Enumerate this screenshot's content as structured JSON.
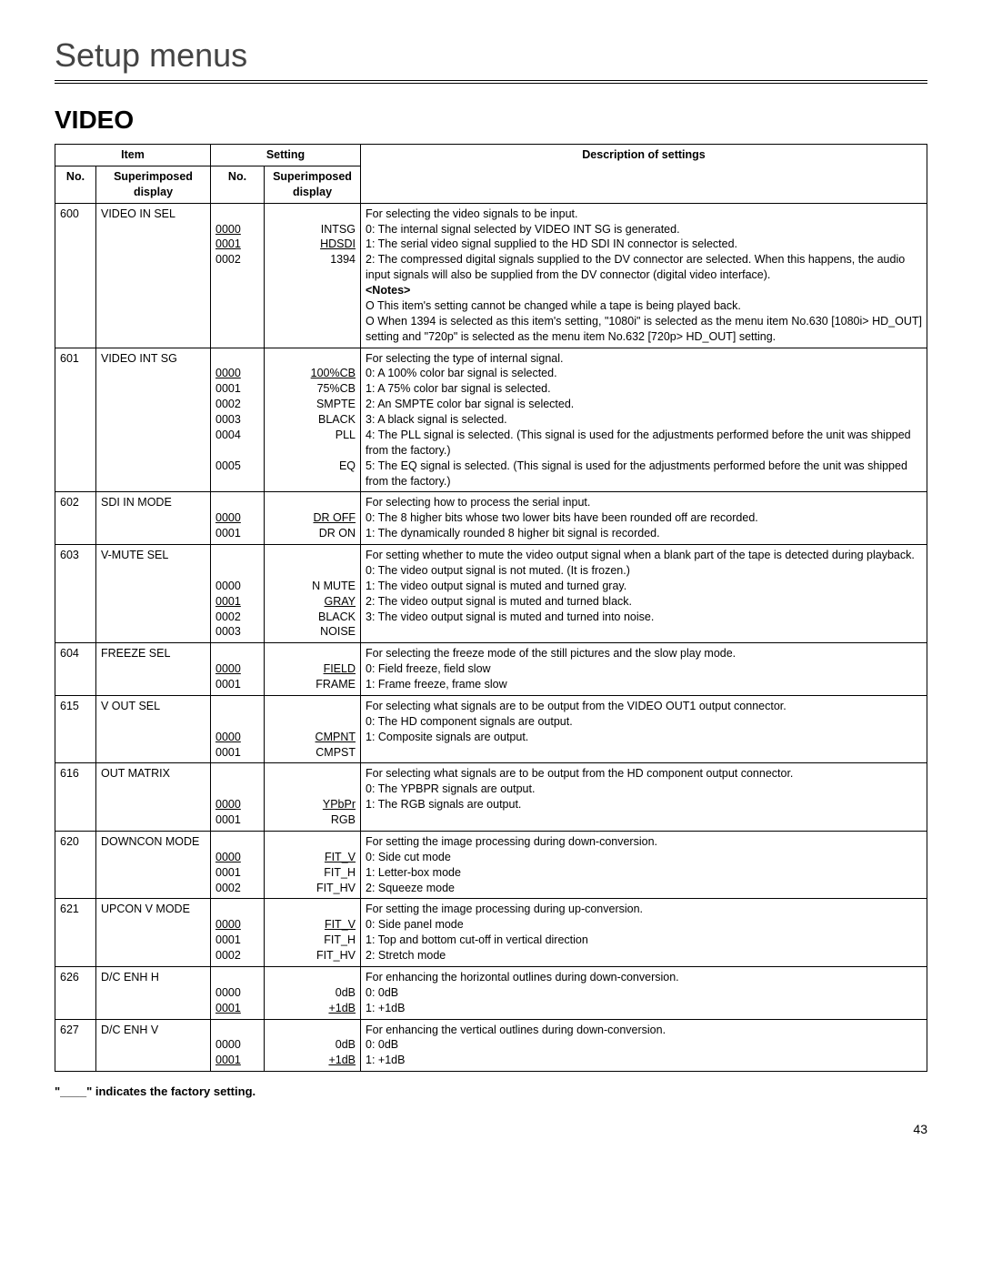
{
  "page": {
    "title": "Setup menus",
    "section": "VIDEO",
    "footnote": "\"____\" indicates the factory setting.",
    "page_number": "43"
  },
  "headers": {
    "item_group": "Item",
    "setting_group": "Setting",
    "no": "No.",
    "super_display": "Superimposed display",
    "desc": "Description of settings"
  },
  "rows": [
    {
      "no": "600",
      "item": "VIDEO IN SEL",
      "settings": [
        {
          "no": "0000",
          "label": "INTSG",
          "no_underline": true,
          "label_underline": false
        },
        {
          "no": "0001",
          "label": "HDSDI",
          "no_underline": true,
          "label_underline": true
        },
        {
          "no": "0002",
          "label": "1394"
        }
      ],
      "intro": "For selecting the video signals to be input.",
      "lines": [
        "0: The internal signal selected by VIDEO INT SG is generated.",
        "1: The serial video signal supplied to the HD SDI IN connector is selected.",
        "2: The compressed digital signals supplied to the DV connector are selected. When this happens, the audio input signals will also be supplied from the DV connector (digital video interface)."
      ],
      "notes_label": "<Notes>",
      "notes": [
        "O This item's setting cannot be changed while a tape is being played back.",
        "O When 1394 is selected as this item's setting, \"1080i\" is selected as the menu item No.630 [1080i>  HD_OUT] setting and \"720p\" is selected as the menu item No.632 [720p>  HD_OUT] setting."
      ]
    },
    {
      "no": "601",
      "item": "VIDEO INT SG",
      "settings": [
        {
          "no": "0000",
          "label": "100%CB",
          "no_underline": true,
          "label_underline": true
        },
        {
          "no": "0001",
          "label": "75%CB"
        },
        {
          "no": "0002",
          "label": "SMPTE"
        },
        {
          "no": "0003",
          "label": "BLACK"
        },
        {
          "no": "0004",
          "label": "PLL"
        },
        {
          "no": "",
          "label": ""
        },
        {
          "no": "0005",
          "label": "EQ"
        }
      ],
      "intro": "For selecting the type of internal signal.",
      "lines": [
        "0: A 100% color bar signal is selected.",
        "1: A 75% color bar signal is selected.",
        "2: An SMPTE color bar signal is selected.",
        "3: A black signal is selected.",
        "4: The PLL signal is selected.  (This signal is used for the adjustments performed before the unit was shipped from the factory.)",
        "5: The EQ signal is selected.  (This signal is used for the adjustments performed before the unit was shipped from the factory.)"
      ]
    },
    {
      "no": "602",
      "item": "SDI IN MODE",
      "settings": [
        {
          "no": "0000",
          "label": "DR OFF",
          "no_underline": true,
          "label_underline": true
        },
        {
          "no": "0001",
          "label": "DR ON"
        }
      ],
      "intro": "For selecting how to process the serial input.",
      "lines": [
        "0: The 8 higher bits whose two lower bits have been rounded off are recorded.",
        "1: The dynamically rounded 8 higher bit signal is recorded."
      ]
    },
    {
      "no": "603",
      "item": "V-MUTE SEL",
      "settings": [
        {
          "no": "",
          "label": ""
        },
        {
          "no": "0000",
          "label": "N MUTE"
        },
        {
          "no": "0001",
          "label": "GRAY",
          "no_underline": true,
          "label_underline": true
        },
        {
          "no": "0002",
          "label": "BLACK"
        },
        {
          "no": "0003",
          "label": "NOISE"
        }
      ],
      "intro": "For setting whether to mute the video output signal when a blank part of the tape is detected during playback.",
      "lines": [
        "0: The video output signal is not muted.  (It is frozen.)",
        "1: The video output signal is muted and turned gray.",
        "2: The video output signal is muted and turned black.",
        "3: The video output signal is muted and turned into noise."
      ]
    },
    {
      "no": "604",
      "item": "FREEZE SEL",
      "settings": [
        {
          "no": "0000",
          "label": "FIELD",
          "no_underline": true,
          "label_underline": true
        },
        {
          "no": "0001",
          "label": "FRAME"
        }
      ],
      "intro": "For selecting the freeze mode of the still pictures and the slow play mode.",
      "lines": [
        "0: Field freeze, field slow",
        "1: Frame freeze, frame slow"
      ]
    },
    {
      "no": "615",
      "item": "V OUT SEL",
      "settings": [
        {
          "no": "",
          "label": ""
        },
        {
          "no": "0000",
          "label": "CMPNT",
          "no_underline": true,
          "label_underline": true
        },
        {
          "no": "0001",
          "label": "CMPST"
        }
      ],
      "intro": "For selecting what signals are to be output from the VIDEO OUT1 output connector.",
      "intro_justify": true,
      "lines": [
        "0: The HD component signals are output.",
        "1: Composite signals are output."
      ]
    },
    {
      "no": "616",
      "item": "OUT MATRIX",
      "settings": [
        {
          "no": "",
          "label": ""
        },
        {
          "no": "0000",
          "label": "YPbPr",
          "no_underline": true,
          "label_underline": true
        },
        {
          "no": "0001",
          "label": "RGB"
        }
      ],
      "intro": "For selecting what signals are to be output from the HD component output connector.",
      "intro_justify": true,
      "lines": [
        "0: The YPBPR signals are output.",
        "1: The RGB signals are output."
      ]
    },
    {
      "no": "620",
      "item": "DOWNCON MODE",
      "settings": [
        {
          "no": "0000",
          "label": "FIT_V",
          "no_underline": true,
          "label_underline": true
        },
        {
          "no": "0001",
          "label": "FIT_H"
        },
        {
          "no": "0002",
          "label": "FIT_HV"
        }
      ],
      "intro": "For setting the image processing during down-conversion.",
      "lines": [
        "0: Side cut mode",
        "1: Letter-box mode",
        "2: Squeeze mode"
      ]
    },
    {
      "no": "621",
      "item": "UPCON V MODE",
      "settings": [
        {
          "no": "0000",
          "label": "FIT_V",
          "no_underline": true,
          "label_underline": true
        },
        {
          "no": "0001",
          "label": "FIT_H"
        },
        {
          "no": "0002",
          "label": "FIT_HV"
        }
      ],
      "intro": "For setting the image processing during up-conversion.",
      "lines": [
        "0: Side panel mode",
        "1: Top and bottom cut-off in vertical direction",
        "2: Stretch mode"
      ]
    },
    {
      "no": "626",
      "item": "D/C ENH H",
      "settings": [
        {
          "no": "0000",
          "label": "0dB"
        },
        {
          "no": "0001",
          "label": "+1dB",
          "no_underline": true,
          "label_underline": true
        }
      ],
      "intro": "For enhancing the horizontal outlines during down-conversion.",
      "lines": [
        "0: 0dB",
        "1: +1dB"
      ]
    },
    {
      "no": "627",
      "item": "D/C ENH V",
      "settings": [
        {
          "no": "0000",
          "label": "0dB"
        },
        {
          "no": "0001",
          "label": "+1dB",
          "no_underline": true,
          "label_underline": true
        }
      ],
      "intro": "For enhancing the vertical outlines during down-conversion.",
      "lines": [
        "0: 0dB",
        "1: +1dB"
      ]
    }
  ]
}
